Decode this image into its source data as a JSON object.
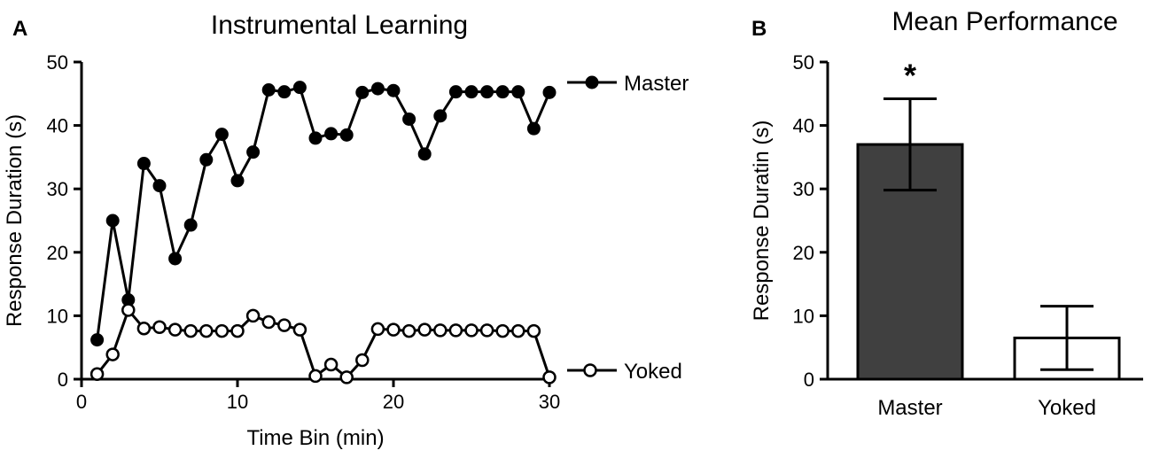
{
  "panels": {
    "a_letter": "A",
    "b_letter": "B"
  },
  "chart_data": [
    {
      "type": "line",
      "title": "Instrumental Learning",
      "xlabel": "Time Bin (min)",
      "ylabel": "Response Duration (s)",
      "xlim": [
        0,
        30
      ],
      "ylim": [
        0,
        50
      ],
      "xticks": [
        "0",
        "10",
        "20",
        "30"
      ],
      "yticks": [
        "0",
        "10",
        "20",
        "30",
        "40",
        "50"
      ],
      "legend_position": "right, beside series ends",
      "grid": false,
      "series": [
        {
          "name": "Master",
          "marker": "filled-circle",
          "color": "#000000",
          "x": [
            1,
            2,
            3,
            4,
            5,
            6,
            7,
            8,
            9,
            10,
            11,
            12,
            13,
            14,
            15,
            16,
            17,
            18,
            19,
            20,
            21,
            22,
            23,
            24,
            25,
            26,
            27,
            28,
            29,
            30
          ],
          "values": [
            6.2,
            25,
            12.5,
            34,
            30.5,
            19,
            24.3,
            34.6,
            38.6,
            31.3,
            35.8,
            45.6,
            45.3,
            46,
            38,
            38.7,
            38.5,
            45.2,
            45.8,
            45.5,
            41,
            35.5,
            41.5,
            45.3,
            45.3,
            45.3,
            45.3,
            45.3,
            39.5,
            45.2
          ]
        },
        {
          "name": "Yoked",
          "marker": "open-circle",
          "color": "#000000",
          "x": [
            1,
            2,
            3,
            4,
            5,
            6,
            7,
            8,
            9,
            10,
            11,
            12,
            13,
            14,
            15,
            16,
            17,
            18,
            19,
            20,
            21,
            22,
            23,
            24,
            25,
            26,
            27,
            28,
            29,
            30
          ],
          "values": [
            0.8,
            3.9,
            10.9,
            8,
            8.2,
            7.8,
            7.6,
            7.6,
            7.6,
            7.6,
            10,
            9,
            8.5,
            7.8,
            0.5,
            2.3,
            0.3,
            3,
            7.9,
            7.8,
            7.6,
            7.8,
            7.7,
            7.7,
            7.7,
            7.7,
            7.6,
            7.6,
            7.6,
            0.3
          ]
        }
      ]
    },
    {
      "type": "bar",
      "title": "Mean Performance",
      "xlabel": "",
      "ylabel": "Response Duratin (s)",
      "ylim": [
        0,
        50
      ],
      "yticks": [
        "0",
        "10",
        "20",
        "30",
        "40",
        "50"
      ],
      "grid": false,
      "categories": [
        "Master",
        "Yoked"
      ],
      "values": [
        37,
        6.5
      ],
      "error_bars": [
        7.2,
        5
      ],
      "bar_colors": [
        "#404040",
        "#ffffff"
      ],
      "annotations": [
        {
          "category": "Master",
          "text": "*"
        }
      ]
    }
  ]
}
